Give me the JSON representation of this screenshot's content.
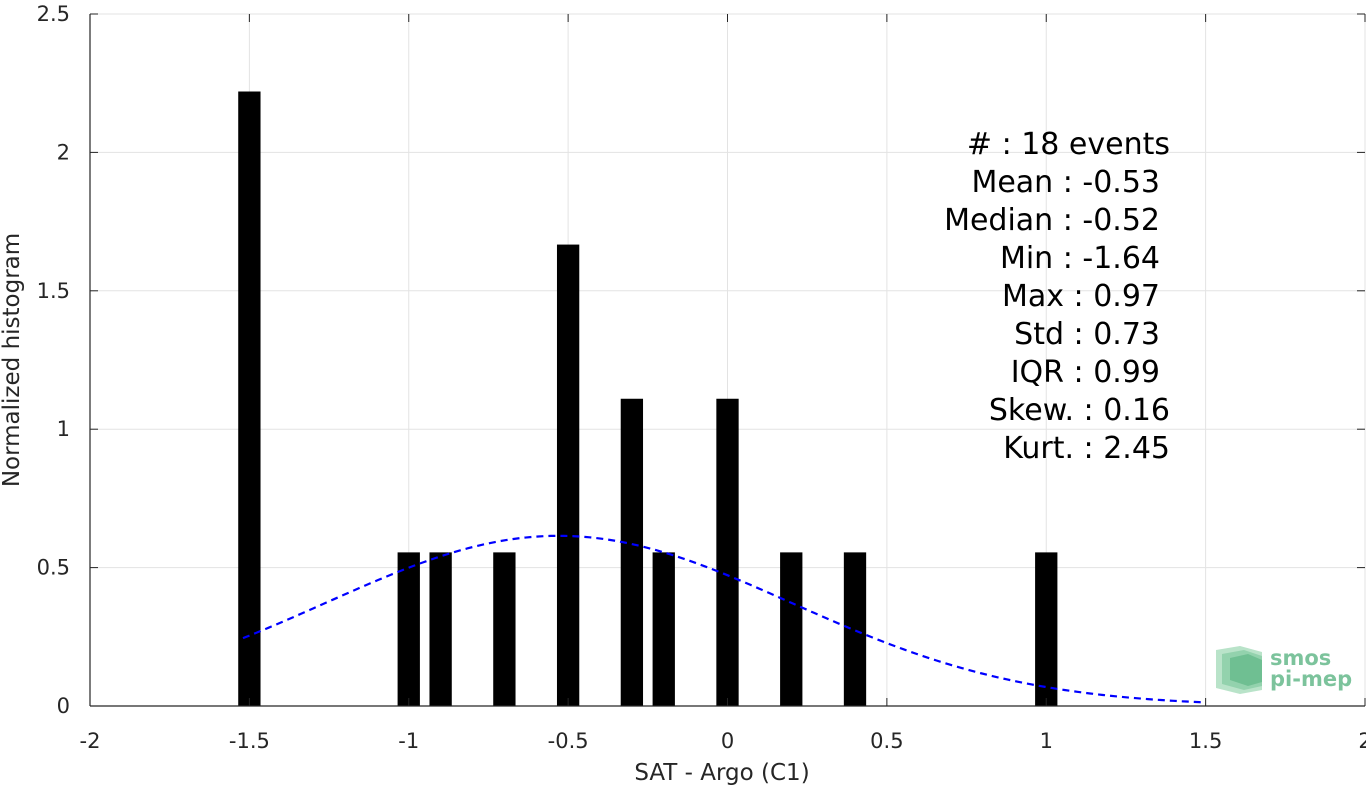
{
  "chart_data": {
    "type": "bar",
    "xlabel": "SAT - Argo (C1)",
    "ylabel": "Normalized histogram",
    "xlim": [
      -2,
      2
    ],
    "ylim": [
      0,
      2.5
    ],
    "grid": true,
    "x_ticks": [
      {
        "value": -2,
        "label": "-2"
      },
      {
        "value": -1.5,
        "label": "-1.5"
      },
      {
        "value": -1,
        "label": "-1"
      },
      {
        "value": -0.5,
        "label": "-0.5"
      },
      {
        "value": 0,
        "label": "0"
      },
      {
        "value": 0.5,
        "label": "0.5"
      },
      {
        "value": 1,
        "label": "1"
      },
      {
        "value": 1.5,
        "label": "1.5"
      },
      {
        "value": 2,
        "label": "2"
      }
    ],
    "y_ticks": [
      {
        "value": 0,
        "label": "0"
      },
      {
        "value": 0.5,
        "label": "0.5"
      },
      {
        "value": 1,
        "label": "1"
      },
      {
        "value": 1.5,
        "label": "1.5"
      },
      {
        "value": 2,
        "label": "2"
      },
      {
        "value": 2.5,
        "label": "2.5"
      }
    ],
    "bars": {
      "color": "#000000",
      "width": 0.07,
      "x": [
        -1.5,
        -1.0,
        -0.9,
        -0.7,
        -0.5,
        -0.3,
        -0.2,
        0.0,
        0.2,
        0.4,
        1.0
      ],
      "values": [
        2.22,
        0.555,
        0.555,
        0.555,
        1.667,
        1.11,
        0.555,
        1.11,
        0.555,
        0.555,
        0.555
      ]
    },
    "fit_curve": {
      "style": "dashed",
      "color": "#0000ff",
      "mean": -0.53,
      "std": 0.73,
      "scale": 1.125,
      "x_range": [
        -1.52,
        1.5
      ]
    },
    "stats": [
      "#  : 18 events",
      "Mean : -0.53",
      "Median : -0.52",
      "Min : -1.64",
      "Max : 0.97",
      "Std : 0.73",
      "IQR : 0.99",
      "Skew. : 0.16",
      "Kurt. : 2.45"
    ]
  },
  "logo": {
    "line1": "smos",
    "line2": "pi-mep",
    "color": "#7cc39c"
  }
}
